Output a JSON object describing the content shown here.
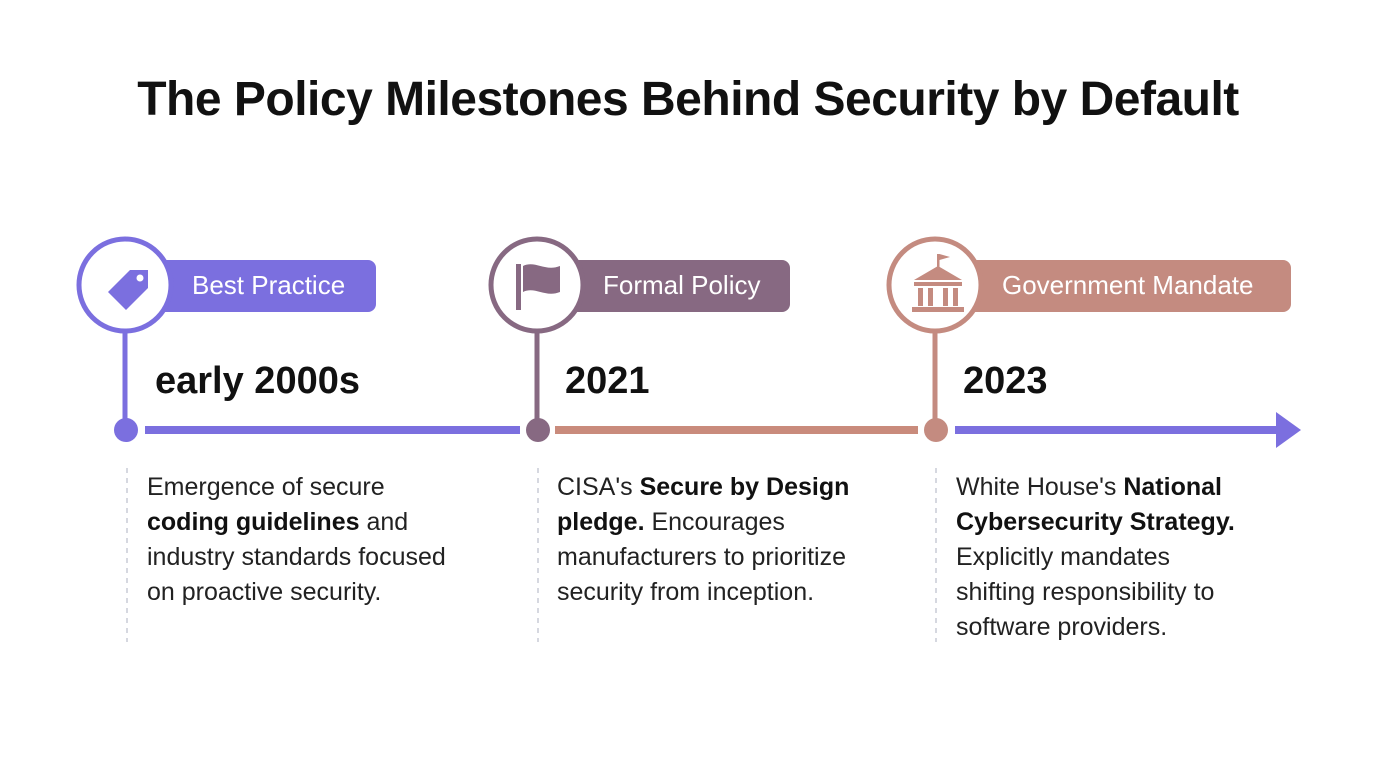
{
  "title": "The Policy Milestones Behind Security by Default",
  "milestones": [
    {
      "label": "Best Practice",
      "date": "early 2000s",
      "color": "#7b6fdf",
      "description": [
        {
          "text": "Emergence of secure "
        },
        {
          "text": "coding guidelines",
          "bold": true
        },
        {
          "text": " and industry standards focused on proactive security."
        }
      ]
    },
    {
      "label": "Formal Policy",
      "date": "2021",
      "color": "#876982",
      "description": [
        {
          "text": "CISA's "
        },
        {
          "text": "Secure by Design pledge.",
          "bold": true
        },
        {
          "text": " Encourages manufacturers to prioritize security from inception."
        }
      ]
    },
    {
      "label": "Government Mandate",
      "date": "2023",
      "color": "#c48b80",
      "description": [
        {
          "text": "White House's "
        },
        {
          "text": "National Cybersecurity Strategy.",
          "bold": true
        },
        {
          "text": " Explicitly mandates shifting responsibility to software providers."
        }
      ]
    }
  ]
}
